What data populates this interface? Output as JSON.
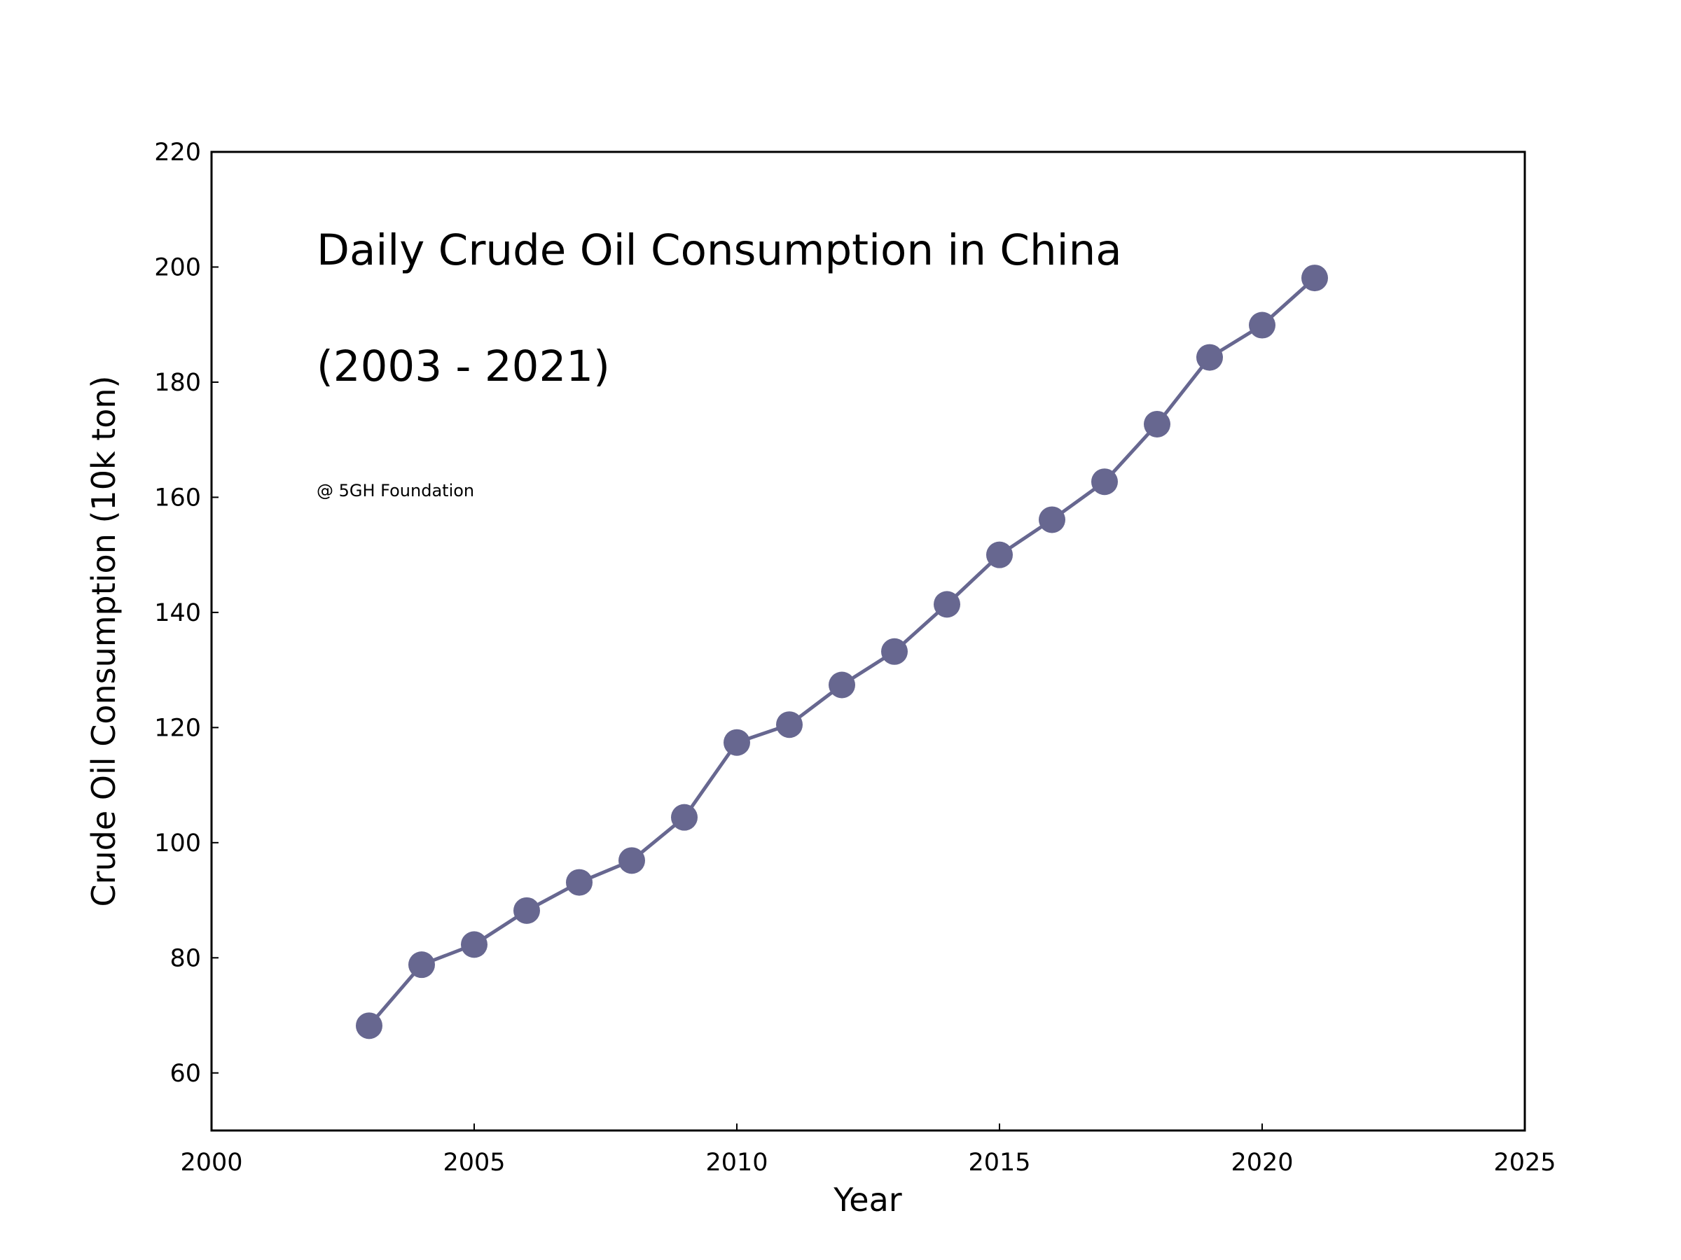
{
  "chart_data": {
    "type": "line",
    "title_line1": "Daily Crude Oil Consumption in China",
    "title_line2": "(2003 - 2021)",
    "annotation": "@ 5GH Foundation",
    "xlabel": "Year",
    "ylabel": "Crude Oil Consumption (10k ton)",
    "xlim": [
      2000,
      2025
    ],
    "ylim": [
      50,
      220
    ],
    "xticks": [
      2000,
      2005,
      2010,
      2015,
      2020,
      2025
    ],
    "yticks": [
      60,
      80,
      100,
      120,
      140,
      160,
      180,
      200,
      220
    ],
    "grid": false,
    "legend": "none",
    "series": [
      {
        "color": "#676790",
        "x": [
          2003,
          2004,
          2005,
          2006,
          2007,
          2008,
          2009,
          2010,
          2011,
          2012,
          2013,
          2014,
          2015,
          2016,
          2017,
          2018,
          2019,
          2020,
          2021
        ],
        "y": [
          68.2,
          78.8,
          82.3,
          88.2,
          93.1,
          96.9,
          104.4,
          117.4,
          120.5,
          127.4,
          133.2,
          141.4,
          150.0,
          156.1,
          162.7,
          172.7,
          184.3,
          189.9,
          198.1
        ]
      }
    ]
  }
}
